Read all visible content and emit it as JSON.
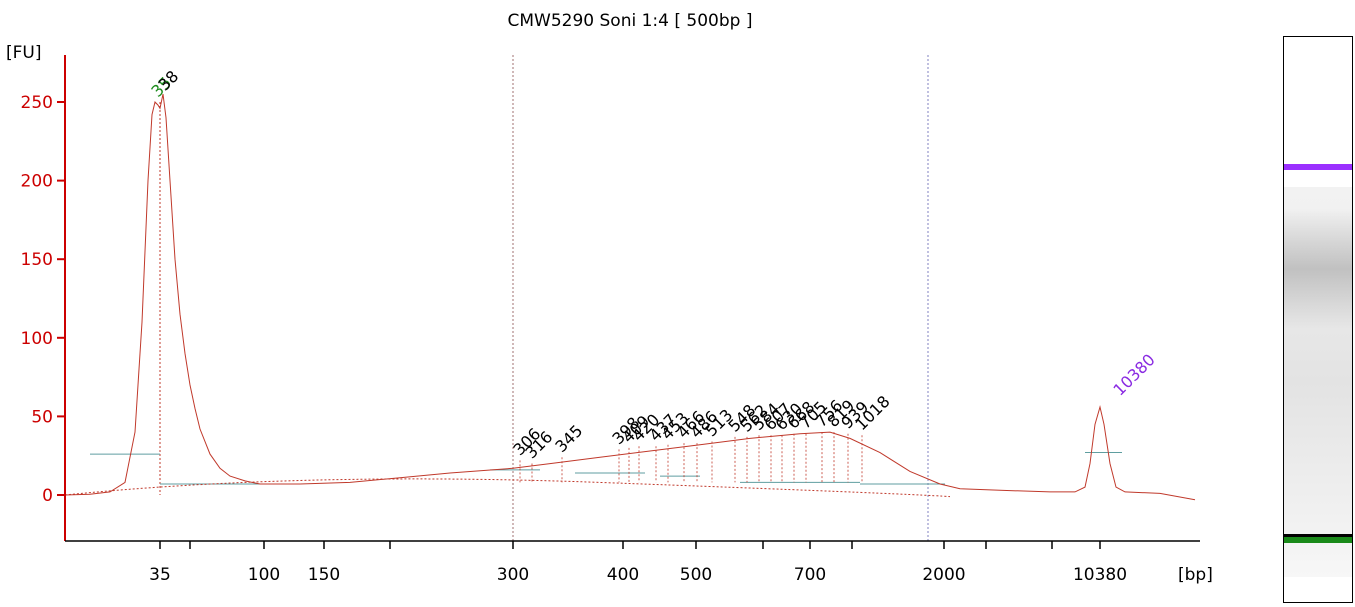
{
  "chart_data": {
    "type": "line",
    "title": "CMW5290 Soni 1:4  [ 500bp ]",
    "ylabel": "[FU]",
    "xlabel": "[bp]",
    "ylim": [
      -28,
      280
    ],
    "y_ticks": [
      0,
      50,
      100,
      150,
      200,
      250
    ],
    "x_ticks": [
      {
        "label": "35",
        "time": 160
      },
      {
        "label": "",
        "time": 190
      },
      {
        "label": "100",
        "time": 264
      },
      {
        "label": "150",
        "time": 324
      },
      {
        "label": "",
        "time": 390
      },
      {
        "label": "300",
        "time": 513
      },
      {
        "label": "400",
        "time": 623
      },
      {
        "label": "500",
        "time": 696
      },
      {
        "label": "",
        "time": 763
      },
      {
        "label": "700",
        "time": 810
      },
      {
        "label": "",
        "time": 852
      },
      {
        "label": "2000",
        "time": 944
      },
      {
        "label": "",
        "time": 986
      },
      {
        "label": "",
        "time": 1052
      },
      {
        "label": "10380",
        "time": 1100
      }
    ],
    "region_markers": [
      513,
      928
    ],
    "series": [
      {
        "points": [
          [
            65,
            0
          ],
          [
            90,
            0.5
          ],
          [
            110,
            2
          ],
          [
            125,
            8
          ],
          [
            135,
            40
          ],
          [
            142,
            110
          ],
          [
            148,
            200
          ],
          [
            152,
            242
          ],
          [
            155,
            250
          ],
          [
            158,
            248
          ],
          [
            160,
            246
          ],
          [
            163,
            255
          ],
          [
            166,
            240
          ],
          [
            170,
            200
          ],
          [
            175,
            150
          ],
          [
            180,
            115
          ],
          [
            185,
            90
          ],
          [
            190,
            70
          ],
          [
            195,
            55
          ],
          [
            200,
            42
          ],
          [
            210,
            26
          ],
          [
            220,
            17
          ],
          [
            230,
            12
          ],
          [
            245,
            9
          ],
          [
            260,
            7
          ],
          [
            300,
            7
          ],
          [
            350,
            8
          ],
          [
            400,
            11
          ],
          [
            450,
            14
          ],
          [
            513,
            17
          ],
          [
            550,
            20
          ],
          [
            600,
            24
          ],
          [
            650,
            28
          ],
          [
            700,
            32
          ],
          [
            750,
            36
          ],
          [
            800,
            39
          ],
          [
            830,
            40
          ],
          [
            850,
            36
          ],
          [
            880,
            27
          ],
          [
            910,
            15
          ],
          [
            940,
            7
          ],
          [
            960,
            4
          ],
          [
            1000,
            3
          ],
          [
            1050,
            2
          ],
          [
            1075,
            2
          ],
          [
            1085,
            5
          ],
          [
            1090,
            20
          ],
          [
            1095,
            45
          ],
          [
            1100,
            56
          ],
          [
            1104,
            45
          ],
          [
            1110,
            20
          ],
          [
            1116,
            5
          ],
          [
            1125,
            2
          ],
          [
            1160,
            1
          ],
          [
            1195,
            -3
          ]
        ]
      }
    ],
    "peaks": [
      {
        "label": "35",
        "time": 158,
        "fu": 250,
        "color": "#1a8a1a"
      },
      {
        "label": "38",
        "time": 165,
        "fu": 254,
        "color": "#000000"
      },
      {
        "label": "306",
        "time": 520,
        "fu": 22,
        "color": "#000000"
      },
      {
        "label": "316",
        "time": 532,
        "fu": 20,
        "color": "#000000"
      },
      {
        "label": "345",
        "time": 562,
        "fu": 24,
        "color": "#000000"
      },
      {
        "label": "398",
        "time": 619,
        "fu": 29,
        "color": "#000000"
      },
      {
        "label": "409",
        "time": 629,
        "fu": 30,
        "color": "#000000"
      },
      {
        "label": "420",
        "time": 639,
        "fu": 31,
        "color": "#000000"
      },
      {
        "label": "437",
        "time": 656,
        "fu": 31,
        "color": "#000000"
      },
      {
        "label": "453",
        "time": 668,
        "fu": 32,
        "color": "#000000"
      },
      {
        "label": "466",
        "time": 684,
        "fu": 33,
        "color": "#000000"
      },
      {
        "label": "486",
        "time": 697,
        "fu": 33,
        "color": "#000000"
      },
      {
        "label": "513",
        "time": 712,
        "fu": 34,
        "color": "#000000"
      },
      {
        "label": "548",
        "time": 735,
        "fu": 37,
        "color": "#000000"
      },
      {
        "label": "562",
        "time": 747,
        "fu": 37,
        "color": "#000000"
      },
      {
        "label": "584",
        "time": 759,
        "fu": 38,
        "color": "#000000"
      },
      {
        "label": "607",
        "time": 771,
        "fu": 38,
        "color": "#000000"
      },
      {
        "label": "630",
        "time": 782,
        "fu": 38,
        "color": "#000000"
      },
      {
        "label": "668",
        "time": 794,
        "fu": 39,
        "color": "#000000"
      },
      {
        "label": "705",
        "time": 806,
        "fu": 39,
        "color": "#000000"
      },
      {
        "label": "756",
        "time": 822,
        "fu": 40,
        "color": "#000000"
      },
      {
        "label": "819",
        "time": 834,
        "fu": 40,
        "color": "#000000"
      },
      {
        "label": "939",
        "time": 848,
        "fu": 39,
        "color": "#000000"
      },
      {
        "label": "1018",
        "time": 862,
        "fu": 38,
        "color": "#000000"
      },
      {
        "label": "10380",
        "time": 1120,
        "fu": 60,
        "color": "#8a2be2"
      }
    ],
    "colors": {
      "trace": "#c0392b",
      "axis": "#cc0000",
      "tick_labels": "#000000",
      "baseline": "#5f9ea0",
      "lower_marker": "#1a8a1a",
      "upper_marker": "#8a2be2"
    }
  },
  "gel_lane": {
    "bands": [
      {
        "position": 0.225,
        "level": 1.0,
        "color": "#9b30ff"
      },
      {
        "position": 0.41,
        "level": 0.25,
        "color": "#808080"
      },
      {
        "position": 0.88,
        "level": 1.0,
        "color": "#000000"
      },
      {
        "position": 0.885,
        "level": 1.0,
        "color": "#1a8a1a"
      }
    ]
  }
}
